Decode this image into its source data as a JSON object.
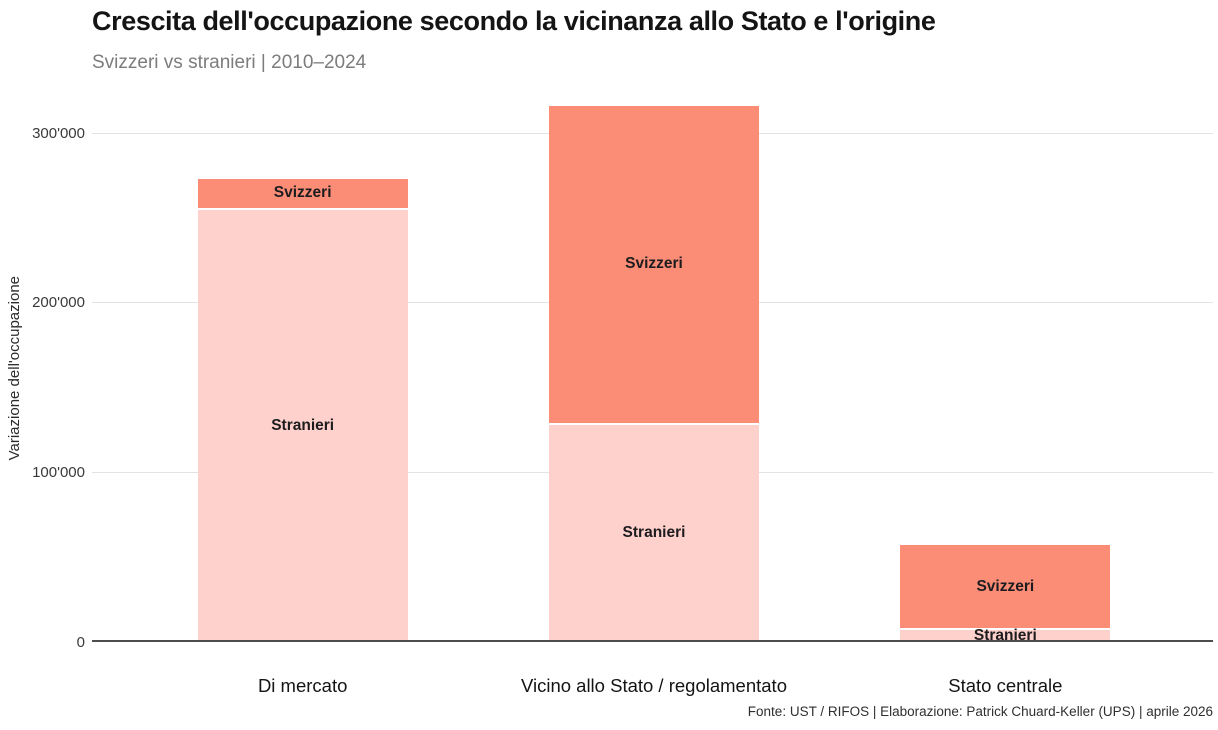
{
  "header": {
    "title": "Crescita dell'occupazione secondo la vicinanza allo Stato e l'origine",
    "subtitle": "Svizzeri vs stranieri | 2010–2024"
  },
  "chart_data": {
    "type": "bar",
    "stacked": true,
    "title": "Crescita dell'occupazione secondo la vicinanza allo Stato e l'origine",
    "subtitle": "Svizzeri vs stranieri | 2010–2024",
    "categories": [
      "Di mercato",
      "Vicino allo Stato / regolamentato",
      "Stato centrale"
    ],
    "series": [
      {
        "name": "Stranieri",
        "color": "#ffd1cc",
        "values": [
          255000,
          128000,
          7000
        ]
      },
      {
        "name": "Svizzeri",
        "color": "#fb8c76",
        "values": [
          18000,
          188000,
          50000
        ]
      }
    ],
    "segment_labels": "inside-centered",
    "xlabel": "",
    "ylabel": "Variazione dell'occupazione",
    "ylim": [
      0,
      322500
    ],
    "yticks": [
      0,
      100000,
      200000,
      300000
    ],
    "ytick_labels": [
      "0",
      "100'000",
      "200'000",
      "300'000"
    ],
    "grid": true,
    "legend_position": "none",
    "colors": {
      "grid": "#e3e3e3",
      "axis": "#4d4d4d",
      "stranieri": "#ffd1cc",
      "svizzeri": "#fb8c76"
    }
  },
  "footer": {
    "source": "Fonte: UST / RIFOS | Elaborazione: Patrick Chuard-Keller (UPS) | aprile 2026"
  }
}
